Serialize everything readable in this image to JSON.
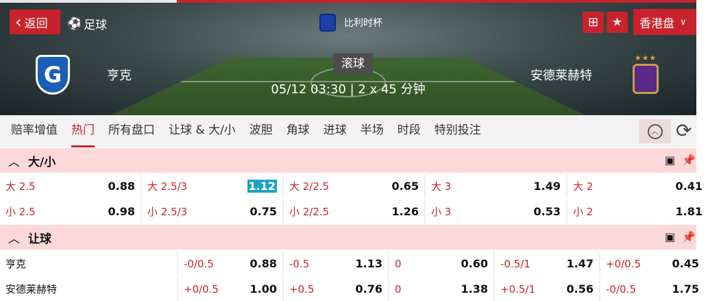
{
  "header": {
    "back_label": "返回",
    "sport": "足球",
    "league": "比利时杯",
    "odds_type": "香港盘",
    "status": "滚球",
    "kickoff": "05/12 03:30 | 2 x 45 分钟",
    "home": "亨克",
    "away": "安德莱赫特",
    "home_crest_text": "G"
  },
  "tabs": [
    "赔率增值",
    "热门",
    "所有盘口",
    "让球 & 大/小",
    "波胆",
    "角球",
    "进球",
    "半场",
    "时段",
    "特别投注"
  ],
  "active_tab": "热门",
  "colors": {
    "accent": "#c8232c",
    "highlight": "#1aa3c4",
    "section_bg": "#fdd8d8"
  },
  "over_under": {
    "title": "大/小",
    "rows": [
      [
        {
          "label": "大 2.5",
          "odds": "0.88"
        },
        {
          "label": "大 2.5/3",
          "odds": "1.12",
          "highlight": true
        },
        {
          "label": "大 2/2.5",
          "odds": "0.65"
        },
        {
          "label": "大 3",
          "odds": "1.49"
        },
        {
          "label": "大 2",
          "odds": "0.41"
        }
      ],
      [
        {
          "label": "小 2.5",
          "odds": "0.98"
        },
        {
          "label": "小 2.5/3",
          "odds": "0.75"
        },
        {
          "label": "小 2/2.5",
          "odds": "1.26"
        },
        {
          "label": "小 3",
          "odds": "0.53"
        },
        {
          "label": "小 2",
          "odds": "1.81"
        }
      ]
    ]
  },
  "handicap": {
    "title": "让球",
    "rows": [
      {
        "team": "亨克",
        "cells": [
          {
            "label": "-0/0.5",
            "odds": "0.88"
          },
          {
            "label": "-0.5",
            "odds": "1.13"
          },
          {
            "label": "0",
            "odds": "0.60"
          },
          {
            "label": "-0.5/1",
            "odds": "1.47"
          },
          {
            "label": "+0/0.5",
            "odds": "0.45"
          }
        ]
      },
      {
        "team": "安德莱赫特",
        "cells": [
          {
            "label": "+0/0.5",
            "odds": "1.00"
          },
          {
            "label": "+0.5",
            "odds": "0.76"
          },
          {
            "label": "0",
            "odds": "1.38"
          },
          {
            "label": "+0.5/1",
            "odds": "0.56"
          },
          {
            "label": "-0/0.5",
            "odds": "1.75"
          }
        ]
      }
    ]
  }
}
